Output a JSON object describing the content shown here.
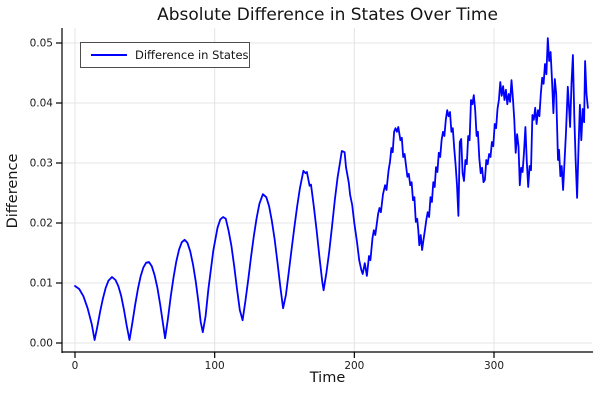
{
  "colors": {
    "line": "#0000ff",
    "grid": "#e4e4e4",
    "axis": "#000000",
    "text": "#1c1c1c",
    "legend_border": "#4d4d4d",
    "background": "#ffffff"
  },
  "chart_data": {
    "type": "line",
    "title": "Absolute Difference in States Over Time",
    "xlabel": "Time",
    "ylabel": "Difference",
    "grid": true,
    "legend": {
      "position": "top-left",
      "entries": [
        {
          "label": "Difference in States",
          "color": "#0000ff"
        }
      ]
    },
    "x_axis": {
      "range": [
        -9,
        370
      ],
      "tick_values": [
        0,
        100,
        200,
        300
      ],
      "tick_labels": [
        "0",
        "100",
        "200",
        "300"
      ]
    },
    "y_axis": {
      "range": [
        -0.0015,
        0.0525
      ],
      "tick_values": [
        0,
        0.01,
        0.02,
        0.03,
        0.04,
        0.05
      ],
      "tick_labels": [
        "0.00",
        "0.01",
        "0.02",
        "0.03",
        "0.04",
        "0.05"
      ]
    },
    "series": [
      {
        "name": "Difference in States",
        "color": "#0000ff",
        "points": [
          [
            0,
            0.0095
          ],
          [
            3,
            0.009
          ],
          [
            6,
            0.0078
          ],
          [
            9,
            0.0058
          ],
          [
            12,
            0.0031
          ],
          [
            14,
            0.0005
          ],
          [
            16,
            0.0027
          ],
          [
            18,
            0.0052
          ],
          [
            20,
            0.0074
          ],
          [
            22,
            0.0092
          ],
          [
            24,
            0.0104
          ],
          [
            26.5,
            0.011
          ],
          [
            29,
            0.0105
          ],
          [
            31,
            0.0095
          ],
          [
            33,
            0.0079
          ],
          [
            35,
            0.0056
          ],
          [
            37,
            0.0029
          ],
          [
            39,
            0.0005
          ],
          [
            41,
            0.0033
          ],
          [
            43,
            0.0063
          ],
          [
            45,
            0.009
          ],
          [
            47,
            0.0111
          ],
          [
            49,
            0.0126
          ],
          [
            51,
            0.0134
          ],
          [
            53,
            0.0135
          ],
          [
            55,
            0.0128
          ],
          [
            57,
            0.0113
          ],
          [
            59,
            0.0092
          ],
          [
            61,
            0.0064
          ],
          [
            63,
            0.0032
          ],
          [
            64.5,
            0.0008
          ],
          [
            66.5,
            0.004
          ],
          [
            68.5,
            0.0077
          ],
          [
            70.5,
            0.0109
          ],
          [
            72.5,
            0.0136
          ],
          [
            74.5,
            0.0156
          ],
          [
            76.5,
            0.0168
          ],
          [
            78.5,
            0.0172
          ],
          [
            80.5,
            0.0167
          ],
          [
            82.5,
            0.0153
          ],
          [
            84.5,
            0.0131
          ],
          [
            86.5,
            0.0102
          ],
          [
            88.5,
            0.0066
          ],
          [
            90,
            0.0035
          ],
          [
            91.5,
            0.0018
          ],
          [
            93.5,
            0.0045
          ],
          [
            95.5,
            0.009
          ],
          [
            99,
            0.0154
          ],
          [
            102,
            0.0192
          ],
          [
            104,
            0.0206
          ],
          [
            106,
            0.021
          ],
          [
            108,
            0.0207
          ],
          [
            110,
            0.0187
          ],
          [
            112,
            0.0162
          ],
          [
            114,
            0.0128
          ],
          [
            116,
            0.009
          ],
          [
            118,
            0.0055
          ],
          [
            120,
            0.0038
          ],
          [
            122,
            0.007
          ],
          [
            124,
            0.0105
          ],
          [
            126,
            0.0143
          ],
          [
            128,
            0.0178
          ],
          [
            130,
            0.0208
          ],
          [
            132,
            0.0232
          ],
          [
            134.5,
            0.0248
          ],
          [
            137,
            0.0243
          ],
          [
            139,
            0.0228
          ],
          [
            141,
            0.0203
          ],
          [
            143,
            0.0172
          ],
          [
            145,
            0.0134
          ],
          [
            147,
            0.0094
          ],
          [
            149,
            0.0058
          ],
          [
            151,
            0.008
          ],
          [
            153,
            0.0117
          ],
          [
            155,
            0.0155
          ],
          [
            157,
            0.0192
          ],
          [
            159,
            0.0227
          ],
          [
            161,
            0.0258
          ],
          [
            163.5,
            0.0287
          ],
          [
            165,
            0.0283
          ],
          [
            166,
            0.0285
          ],
          [
            168,
            0.0262
          ],
          [
            169,
            0.0264
          ],
          [
            171,
            0.0228
          ],
          [
            173,
            0.0188
          ],
          [
            175,
            0.0144
          ],
          [
            177,
            0.0103
          ],
          [
            178,
            0.0088
          ],
          [
            180,
            0.0117
          ],
          [
            182,
            0.0152
          ],
          [
            184,
            0.0194
          ],
          [
            186,
            0.0238
          ],
          [
            188,
            0.0276
          ],
          [
            190,
            0.0305
          ],
          [
            191,
            0.032
          ],
          [
            193,
            0.0318
          ],
          [
            194,
            0.0293
          ],
          [
            196,
            0.0267
          ],
          [
            197,
            0.0247
          ],
          [
            198.5,
            0.023
          ],
          [
            200,
            0.02
          ],
          [
            202,
            0.0167
          ],
          [
            203.5,
            0.0138
          ],
          [
            205,
            0.0122
          ],
          [
            206,
            0.0115
          ],
          [
            207.5,
            0.0133
          ],
          [
            209,
            0.0112
          ],
          [
            210.5,
            0.0145
          ],
          [
            211.5,
            0.0138
          ],
          [
            213,
            0.0175
          ],
          [
            214,
            0.0188
          ],
          [
            215,
            0.018
          ],
          [
            217,
            0.0215
          ],
          [
            218,
            0.0225
          ],
          [
            219,
            0.0218
          ],
          [
            220.5,
            0.0248
          ],
          [
            222,
            0.0263
          ],
          [
            223,
            0.0255
          ],
          [
            224.5,
            0.0288
          ],
          [
            225.5,
            0.0302
          ],
          [
            226.5,
            0.0325
          ],
          [
            227.5,
            0.0318
          ],
          [
            228.5,
            0.0352
          ],
          [
            229.5,
            0.0358
          ],
          [
            230.5,
            0.0352
          ],
          [
            231.5,
            0.036
          ],
          [
            233,
            0.0338
          ],
          [
            234,
            0.0342
          ],
          [
            235,
            0.031
          ],
          [
            236,
            0.0315
          ],
          [
            238,
            0.0277
          ],
          [
            239,
            0.0282
          ],
          [
            240,
            0.0263
          ],
          [
            241,
            0.0268
          ],
          [
            242,
            0.0238
          ],
          [
            243,
            0.0243
          ],
          [
            244,
            0.0202
          ],
          [
            245,
            0.0207
          ],
          [
            245.8,
            0.0188
          ],
          [
            246.5,
            0.0163
          ],
          [
            247.5,
            0.018
          ],
          [
            248.5,
            0.0155
          ],
          [
            249.5,
            0.0172
          ],
          [
            250.5,
            0.0188
          ],
          [
            251.5,
            0.0205
          ],
          [
            252.5,
            0.0218
          ],
          [
            253.5,
            0.021
          ],
          [
            254.5,
            0.0243
          ],
          [
            255.5,
            0.0235
          ],
          [
            256.5,
            0.0268
          ],
          [
            257.5,
            0.026
          ],
          [
            258.5,
            0.0293
          ],
          [
            259.5,
            0.0285
          ],
          [
            260.5,
            0.0317
          ],
          [
            261.5,
            0.031
          ],
          [
            262.5,
            0.0338
          ],
          [
            263.5,
            0.0352
          ],
          [
            264.5,
            0.0345
          ],
          [
            265.5,
            0.0372
          ],
          [
            266.5,
            0.0388
          ],
          [
            267.5,
            0.0378
          ],
          [
            268.5,
            0.0385
          ],
          [
            269.5,
            0.0352
          ],
          [
            270.5,
            0.0358
          ],
          [
            271.5,
            0.0325
          ],
          [
            272.5,
            0.0297
          ],
          [
            273.5,
            0.0263
          ],
          [
            274.5,
            0.0212
          ],
          [
            275.5,
            0.0335
          ],
          [
            276.5,
            0.034
          ],
          [
            277.5,
            0.0283
          ],
          [
            278.5,
            0.027
          ],
          [
            279.5,
            0.0305
          ],
          [
            280.5,
            0.0298
          ],
          [
            281.5,
            0.0345
          ],
          [
            282.5,
            0.0338
          ],
          [
            283.5,
            0.0405
          ],
          [
            284.5,
            0.0398
          ],
          [
            285.5,
            0.0413
          ],
          [
            286.5,
            0.0388
          ],
          [
            287.5,
            0.0345
          ],
          [
            288.5,
            0.0352
          ],
          [
            289.5,
            0.0308
          ],
          [
            290.5,
            0.0283
          ],
          [
            291.5,
            0.0292
          ],
          [
            292.5,
            0.0268
          ],
          [
            293.5,
            0.0272
          ],
          [
            294.5,
            0.0305
          ],
          [
            295.5,
            0.0298
          ],
          [
            296.5,
            0.0315
          ],
          [
            297.5,
            0.031
          ],
          [
            298.5,
            0.0335
          ],
          [
            299.5,
            0.0328
          ],
          [
            300.5,
            0.0365
          ],
          [
            301.5,
            0.0358
          ],
          [
            302.5,
            0.039
          ],
          [
            303.5,
            0.0405
          ],
          [
            304.5,
            0.0435
          ],
          [
            305.5,
            0.0412
          ],
          [
            306.5,
            0.0428
          ],
          [
            307.5,
            0.0405
          ],
          [
            308.5,
            0.0422
          ],
          [
            309.5,
            0.0398
          ],
          [
            310.5,
            0.0415
          ],
          [
            311.5,
            0.0402
          ],
          [
            312.5,
            0.0438
          ],
          [
            313.5,
            0.0408
          ],
          [
            314.5,
            0.0372
          ],
          [
            315.5,
            0.0317
          ],
          [
            316.5,
            0.0348
          ],
          [
            317.5,
            0.0328
          ],
          [
            318.5,
            0.0263
          ],
          [
            319.5,
            0.0292
          ],
          [
            320.5,
            0.0285
          ],
          [
            321.5,
            0.0318
          ],
          [
            322.5,
            0.036
          ],
          [
            323.5,
            0.0302
          ],
          [
            324.5,
            0.026
          ],
          [
            325.5,
            0.0295
          ],
          [
            326.5,
            0.0288
          ],
          [
            327.5,
            0.038
          ],
          [
            328.5,
            0.0372
          ],
          [
            329.5,
            0.0392
          ],
          [
            330.5,
            0.0365
          ],
          [
            331.5,
            0.0388
          ],
          [
            332.5,
            0.0378
          ],
          [
            333.5,
            0.0415
          ],
          [
            334.5,
            0.0442
          ],
          [
            335.5,
            0.0432
          ],
          [
            336.5,
            0.0465
          ],
          [
            337.5,
            0.0448
          ],
          [
            338.5,
            0.0508
          ],
          [
            339.5,
            0.047
          ],
          [
            340.5,
            0.0485
          ],
          [
            341.5,
            0.0438
          ],
          [
            342.5,
            0.0383
          ],
          [
            343.5,
            0.044
          ],
          [
            344.5,
            0.0415
          ],
          [
            345.8,
            0.0305
          ],
          [
            346.5,
            0.0322
          ],
          [
            347.5,
            0.0278
          ],
          [
            348.5,
            0.0295
          ],
          [
            349.5,
            0.0255
          ],
          [
            350.5,
            0.0302
          ],
          [
            351.5,
            0.0348
          ],
          [
            352.8,
            0.0427
          ],
          [
            353.8,
            0.0388
          ],
          [
            354.5,
            0.036
          ],
          [
            355.5,
            0.0432
          ],
          [
            356.5,
            0.048
          ],
          [
            357.5,
            0.0377
          ],
          [
            358.5,
            0.0302
          ],
          [
            359.5,
            0.0242
          ],
          [
            360.5,
            0.0325
          ],
          [
            361.5,
            0.0397
          ],
          [
            362.5,
            0.0338
          ],
          [
            363.5,
            0.039
          ],
          [
            364.5,
            0.0368
          ],
          [
            365.2,
            0.047
          ],
          [
            366.2,
            0.0415
          ],
          [
            367.2,
            0.0392
          ]
        ]
      }
    ]
  }
}
